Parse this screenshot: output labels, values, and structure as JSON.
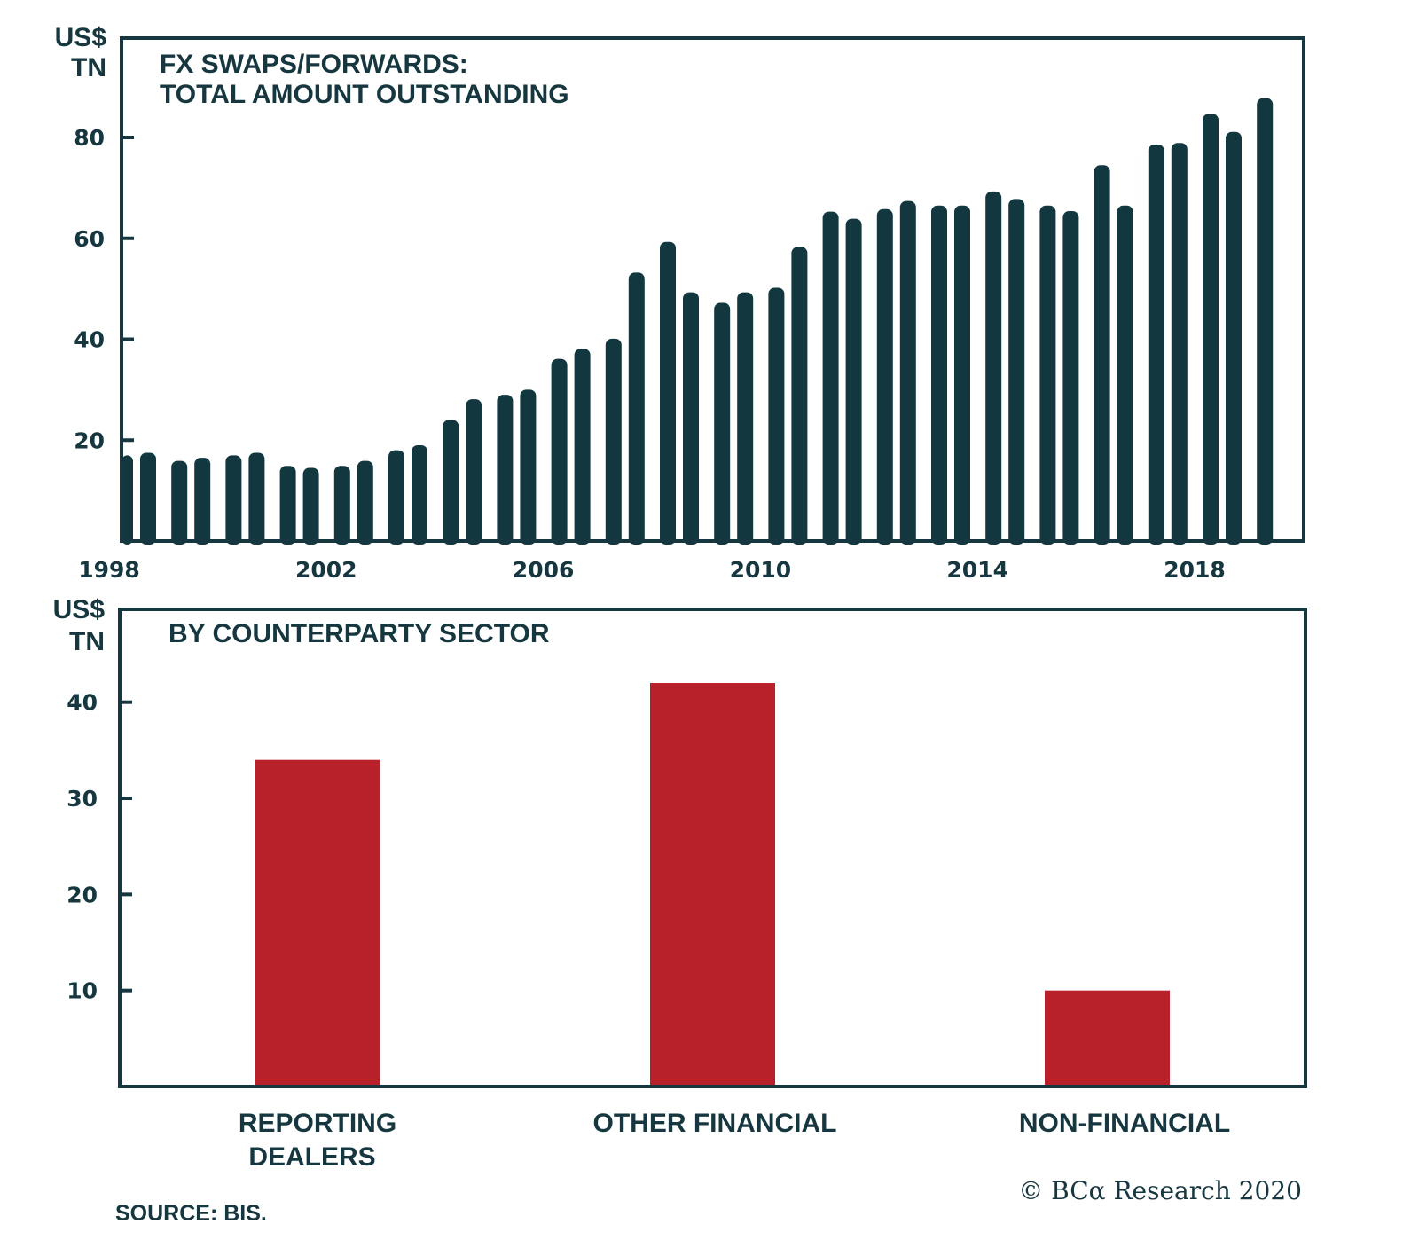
{
  "colors": {
    "ink": "#16373f",
    "bar_top": "#12373f",
    "bar_bottom": "#b8202a"
  },
  "chart_data": [
    {
      "type": "bar",
      "title": "FX SWAPS/FORWARDS:",
      "subtitle": "TOTAL AMOUNT OUTSTANDING",
      "ylabel_line1": "US$",
      "ylabel_line2": "TN",
      "xlabel": "",
      "frequency": "semi-annual",
      "ylim": [
        0,
        97
      ],
      "yticks": [
        20,
        40,
        60,
        80
      ],
      "ytick_labels": [
        "20",
        "40",
        "60",
        "80"
      ],
      "xtick_labels": [
        "1998",
        "2002",
        "2006",
        "2010",
        "2014",
        "2018"
      ],
      "grid": false,
      "categories": [
        "1998 H1",
        "1998 H2",
        "1999 H1",
        "1999 H2",
        "2000 H1",
        "2000 H2",
        "2001 H1",
        "2001 H2",
        "2002 H1",
        "2002 H2",
        "2003 H1",
        "2003 H2",
        "2004 H1",
        "2004 H2",
        "2005 H1",
        "2005 H2",
        "2006 H1",
        "2006 H2",
        "2007 H1",
        "2007 H2",
        "2008 H1",
        "2008 H2",
        "2009 H1",
        "2009 H2",
        "2010 H1",
        "2010 H2",
        "2011 H1",
        "2011 H2",
        "2012 H1",
        "2012 H2",
        "2013 H1",
        "2013 H2",
        "2014 H1",
        "2014 H2",
        "2015 H1",
        "2015 H2",
        "2016 H1",
        "2016 H2",
        "2017 H1",
        "2017 H2",
        "2018 H1",
        "2018 H2",
        "2019 H1"
      ],
      "values": [
        17.0,
        17.5,
        15.9,
        16.5,
        17.0,
        17.5,
        14.9,
        14.5,
        14.9,
        15.9,
        18.0,
        19.0,
        24.0,
        28.1,
        29.0,
        30.0,
        36.1,
        38.1,
        40.1,
        53.2,
        59.3,
        49.3,
        47.2,
        49.3,
        50.2,
        58.3,
        65.3,
        63.9,
        65.8,
        67.4,
        66.5,
        66.5,
        69.3,
        67.8,
        66.5,
        65.4,
        74.5,
        66.5,
        78.6,
        78.9,
        84.7,
        81.1,
        87.8
      ]
    },
    {
      "type": "bar",
      "title": "BY COUNTERPARTY SECTOR",
      "ylabel_line1": "US$",
      "ylabel_line2": "TN",
      "xlabel": "",
      "ylim": [
        0,
        48.7
      ],
      "yticks": [
        10,
        20,
        30,
        40
      ],
      "ytick_labels": [
        "10",
        "20",
        "30",
        "40"
      ],
      "grid": false,
      "categories": [
        {
          "line1": "REPORTING",
          "line2": "DEALERS"
        },
        {
          "line1": "OTHER FINANCIAL",
          "line2": ""
        },
        {
          "line1": "NON-FINANCIAL",
          "line2": ""
        }
      ],
      "values": [
        34,
        42,
        10
      ]
    }
  ],
  "footer": {
    "source": "SOURCE: BIS.",
    "copyright": "© BCα Research 2020"
  }
}
